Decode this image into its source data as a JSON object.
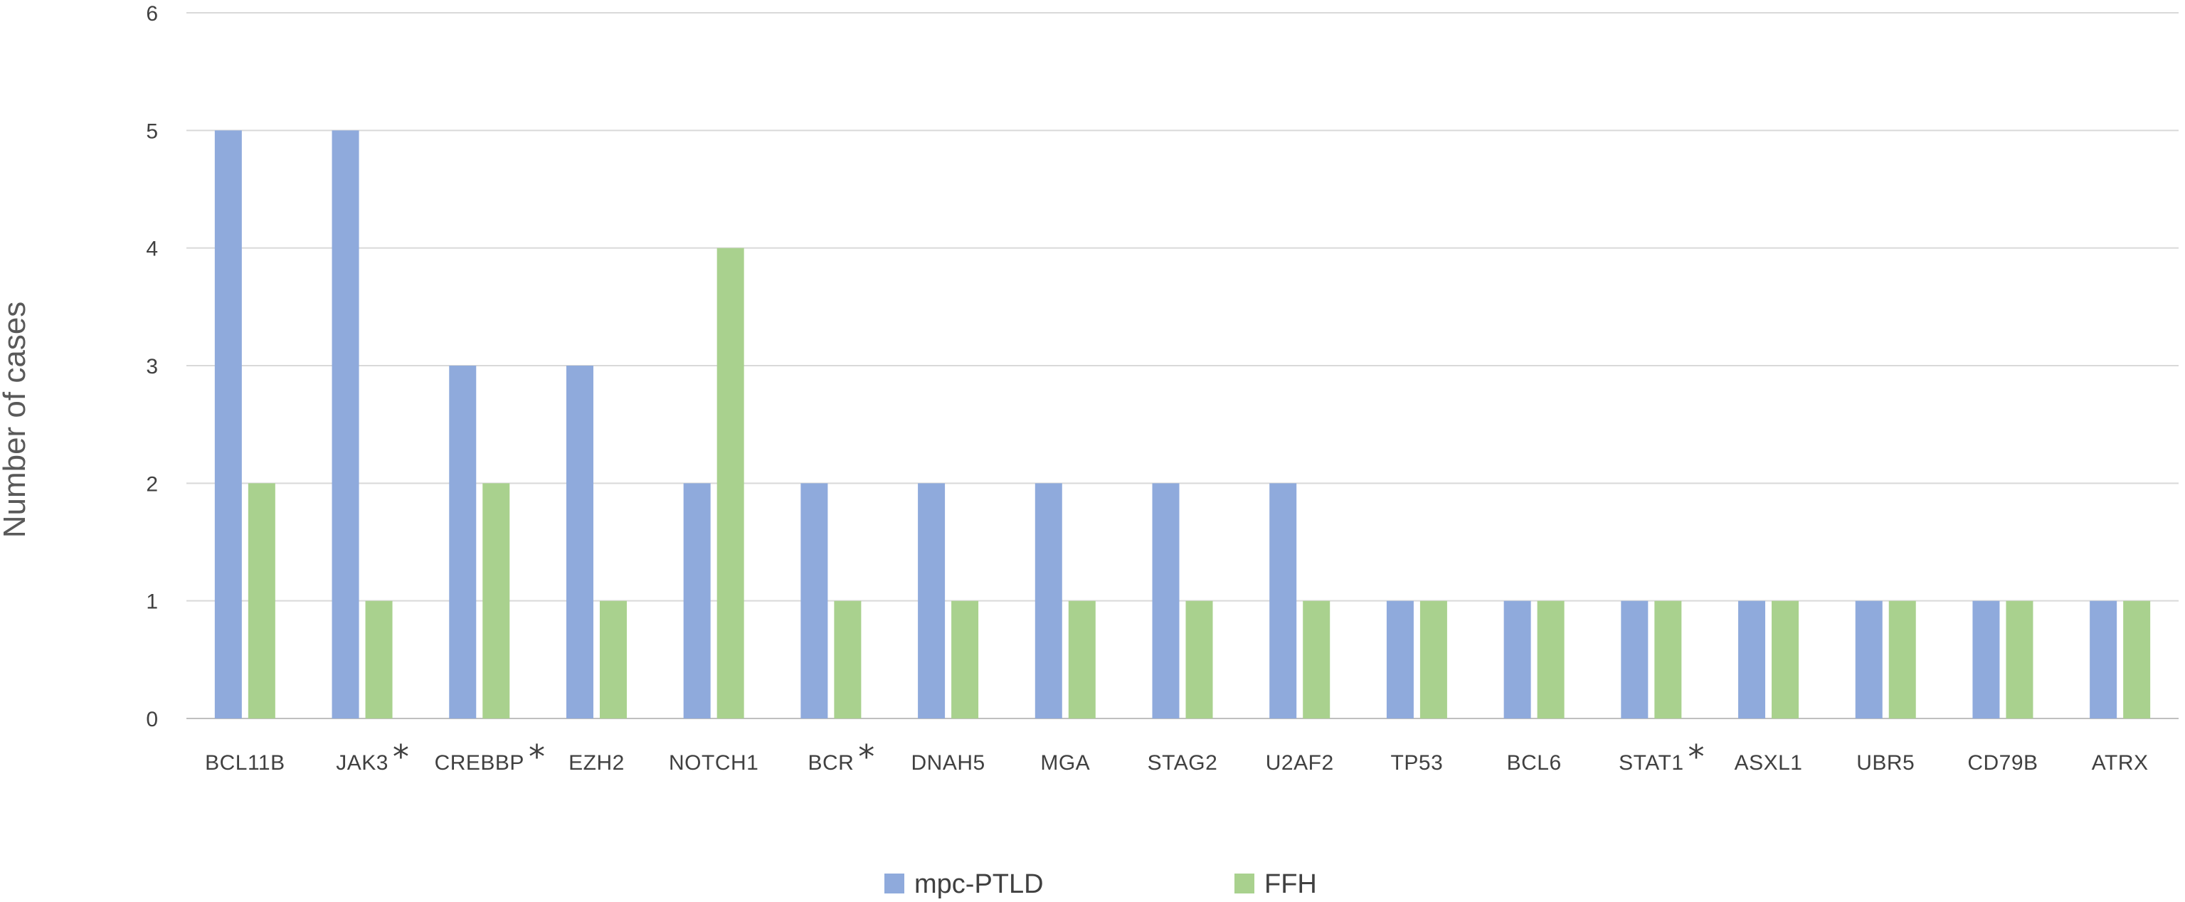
{
  "chart_data": {
    "type": "bar",
    "categories": [
      "BCL11B",
      "JAK3",
      "CREBBP",
      "EZH2",
      "NOTCH1",
      "BCR",
      "DNAH5",
      "MGA",
      "STAG2",
      "U2AF2",
      "TP53",
      "BCL6",
      "STAT1",
      "ASXL1",
      "UBR5",
      "CD79B",
      "ATRX"
    ],
    "starred": [
      false,
      true,
      true,
      false,
      false,
      true,
      false,
      false,
      false,
      false,
      false,
      false,
      true,
      false,
      false,
      false,
      false
    ],
    "star_symbol": "*",
    "series": [
      {
        "name": "mpc-PTLD",
        "color": "#8faadc",
        "values": [
          5,
          5,
          3,
          3,
          2,
          2,
          2,
          2,
          2,
          2,
          1,
          1,
          1,
          1,
          1,
          1,
          1
        ]
      },
      {
        "name": "FFH",
        "color": "#a9d18e",
        "values": [
          2,
          1,
          2,
          1,
          4,
          1,
          1,
          1,
          1,
          1,
          1,
          1,
          1,
          1,
          1,
          1,
          1
        ]
      }
    ],
    "yticks": [
      "0",
      "1",
      "2",
      "3",
      "4",
      "5",
      "6"
    ],
    "ylim": [
      0,
      6
    ],
    "ylabel": "Number of cases",
    "xlabel": "",
    "title": "",
    "grid": true,
    "legend_position": "bottom-center"
  }
}
